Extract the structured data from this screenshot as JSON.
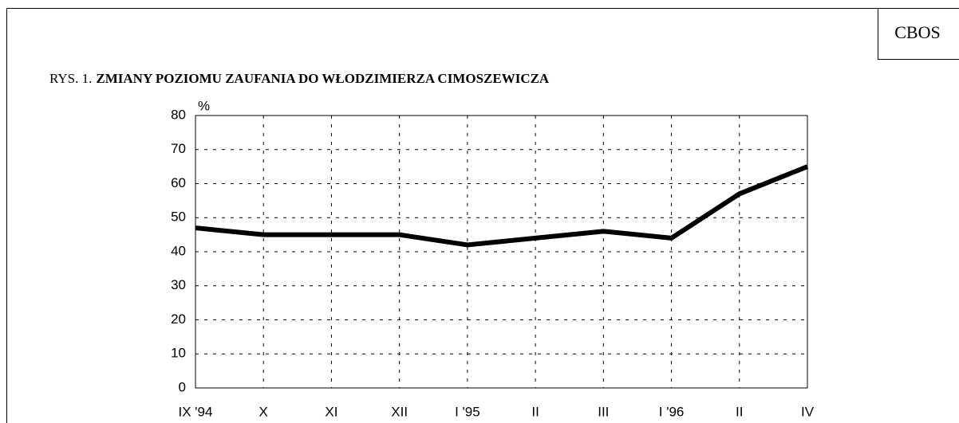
{
  "source": "CBOS",
  "chart_data": {
    "type": "line",
    "figure_label": "RYS. 1.",
    "title": "ZMIANY POZIOMU ZAUFANIA DO WŁODZIMIERZA CIMOSZEWICZA",
    "ylabel": "%",
    "categories": [
      "IX '94",
      "X",
      "XI",
      "XII",
      "I '95",
      "II",
      "III",
      "I '96",
      "II",
      "IV"
    ],
    "values": [
      47,
      45,
      45,
      45,
      42,
      44,
      46,
      44,
      57,
      65
    ],
    "color": "#000000",
    "ylim": [
      0,
      80
    ],
    "yticks": [
      0,
      10,
      20,
      30,
      40,
      50,
      60,
      70,
      80
    ],
    "grid": true
  }
}
